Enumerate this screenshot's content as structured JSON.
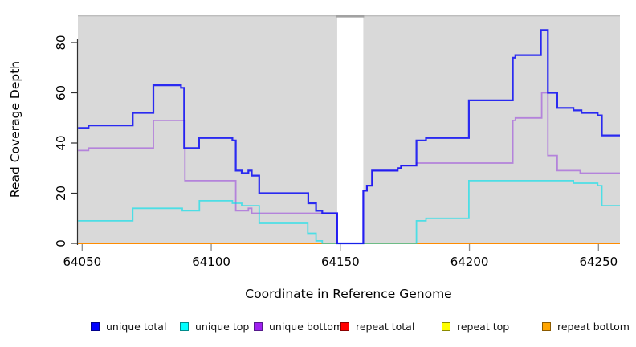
{
  "figure": {
    "type": "coverage-step-plot",
    "background": "#ffffff",
    "panel_background": "#d9d9d9"
  },
  "axes": {
    "x": {
      "label": "Coordinate in Reference Genome",
      "ticks": [
        64050,
        64100,
        64150,
        64200,
        64250
      ],
      "range_visible": [
        64048.4,
        64258.3
      ]
    },
    "y": {
      "label": "Read Coverage Depth",
      "ticks": [
        0,
        20,
        40,
        60,
        80
      ],
      "range_visible": [
        0,
        91
      ]
    }
  },
  "chart_data": {
    "type": "line",
    "subtype": "step",
    "title": "",
    "xlabel": "Coordinate in Reference Genome",
    "ylabel": "Read Coverage Depth",
    "xlim": [
      64048.4,
      64258.3
    ],
    "ylim": [
      0,
      91
    ],
    "grid": false,
    "gap_band": {
      "from": 64148.8,
      "to": 64158.9,
      "color": "#ffffff",
      "note": "white vertical band where coverage drops to 0"
    },
    "series": [
      {
        "id": "repeat-total",
        "name": "repeat total",
        "line_color": "#cc0000",
        "line_width": 1.5,
        "steps": [
          [
            64048.4,
            0
          ]
        ]
      },
      {
        "id": "repeat-top",
        "name": "repeat top",
        "line_color": "#ffff00",
        "line_width": 1.5,
        "steps": [
          [
            64048.4,
            0
          ]
        ]
      },
      {
        "id": "repeat-bottom",
        "name": "repeat bottom",
        "line_color": "#ff8c00",
        "line_width": 2,
        "steps": [
          [
            64048.4,
            0
          ]
        ]
      },
      {
        "id": "unique-bottom",
        "name": "unique bottom",
        "line_color": "rgba(150,60,220,0.55)",
        "line_width": 1.8,
        "steps": [
          [
            64048.4,
            37
          ],
          [
            64052.5,
            38
          ],
          [
            64077.6,
            49
          ],
          [
            64089.8,
            25
          ],
          [
            64109.5,
            13
          ],
          [
            64114.4,
            14
          ],
          [
            64115.7,
            12
          ],
          [
            64148.8,
            0
          ],
          [
            64158.9,
            21
          ],
          [
            64160.3,
            23
          ],
          [
            64162.3,
            29
          ],
          [
            64172.2,
            30
          ],
          [
            64173.5,
            31
          ],
          [
            64179.5,
            32
          ],
          [
            64216.8,
            49
          ],
          [
            64217.8,
            50
          ],
          [
            64228.0,
            60
          ],
          [
            64230.4,
            35
          ],
          [
            64234.0,
            29
          ],
          [
            64242.9,
            28
          ]
        ]
      },
      {
        "id": "unique-top",
        "name": "unique top",
        "line_color": "rgba(0,225,235,0.65)",
        "line_width": 1.8,
        "steps": [
          [
            64048.4,
            9
          ],
          [
            64069.6,
            14
          ],
          [
            64088.8,
            13
          ],
          [
            64095.4,
            17
          ],
          [
            64108.2,
            16
          ],
          [
            64111.8,
            15
          ],
          [
            64118.6,
            8
          ],
          [
            64137.4,
            4
          ],
          [
            64140.6,
            1
          ],
          [
            64143.0,
            0
          ],
          [
            64179.5,
            9
          ],
          [
            64183.2,
            10
          ],
          [
            64199.8,
            25
          ],
          [
            64240.3,
            24
          ],
          [
            64249.7,
            23
          ],
          [
            64251.3,
            15
          ]
        ]
      },
      {
        "id": "unique-total",
        "name": "unique total",
        "line_color": "rgba(10,10,245,0.85)",
        "line_width": 2.2,
        "steps": [
          [
            64048.4,
            46
          ],
          [
            64052.5,
            47
          ],
          [
            64069.6,
            52
          ],
          [
            64077.6,
            63
          ],
          [
            64088.3,
            62
          ],
          [
            64089.5,
            38
          ],
          [
            64095.3,
            42
          ],
          [
            64108.2,
            41
          ],
          [
            64109.5,
            29
          ],
          [
            64111.8,
            28
          ],
          [
            64114.4,
            29
          ],
          [
            64115.7,
            27
          ],
          [
            64118.6,
            20
          ],
          [
            64137.6,
            16
          ],
          [
            64140.6,
            13
          ],
          [
            64143.0,
            12
          ],
          [
            64148.8,
            0
          ],
          [
            64158.9,
            21
          ],
          [
            64160.3,
            23
          ],
          [
            64162.3,
            29
          ],
          [
            64172.2,
            30
          ],
          [
            64173.5,
            31
          ],
          [
            64179.5,
            41
          ],
          [
            64183.2,
            42
          ],
          [
            64199.8,
            57
          ],
          [
            64216.8,
            74
          ],
          [
            64217.8,
            75
          ],
          [
            64227.7,
            85
          ],
          [
            64230.4,
            60
          ],
          [
            64234.0,
            54
          ],
          [
            64240.3,
            53
          ],
          [
            64243.4,
            52
          ],
          [
            64249.7,
            51
          ],
          [
            64251.3,
            43
          ]
        ]
      }
    ]
  },
  "legend": {
    "items": [
      {
        "label": "unique total",
        "swatch": "#0000ff",
        "border": "#00008b"
      },
      {
        "label": "unique top",
        "swatch": "#00ffff",
        "border": "#008b8b"
      },
      {
        "label": "unique bottom",
        "swatch": "#a020f0",
        "border": "#551a8b"
      },
      {
        "label": "repeat total",
        "swatch": "#ff0000",
        "border": "#8b0000"
      },
      {
        "label": "repeat top",
        "swatch": "#ffff00",
        "border": "#8b8b00"
      },
      {
        "label": "repeat bottom",
        "swatch": "#ffa500",
        "border": "#8b5a00"
      }
    ]
  }
}
